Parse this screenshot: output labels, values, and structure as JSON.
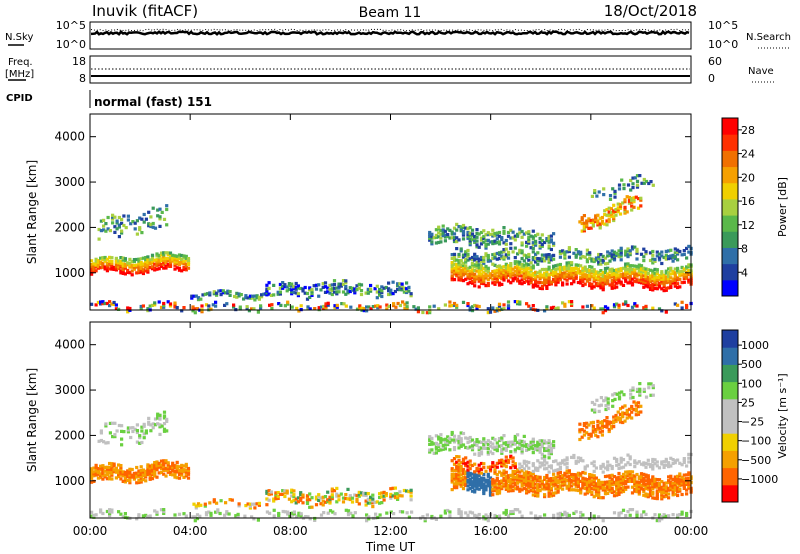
{
  "header": {
    "title": "Inuvik (fitACF)",
    "beam": "Beam 11",
    "date": "18/Oct/2018"
  },
  "noise_panel": {
    "left_label": "N.Sky",
    "right_label": "N.Search",
    "left_ticks": [
      "10^5",
      "10^0"
    ],
    "right_ticks": [
      "10^5",
      "10^0"
    ]
  },
  "freq_panel": {
    "left_label_line1": "Freq.",
    "left_label_line2": "[MHz]",
    "left_ticks": [
      "18",
      "8"
    ],
    "right_label": "Nave",
    "right_ticks": [
      "60",
      "0"
    ]
  },
  "cpid": {
    "label": "CPID",
    "mode": "normal (fast) 151"
  },
  "colors": {
    "power_scale": [
      "#0000ff",
      "#1f3fa0",
      "#2f6fa8",
      "#3a9a5a",
      "#5ab84a",
      "#a8d040",
      "#f0d000",
      "#f5a000",
      "#f07000",
      "#ff3000",
      "#ff0000"
    ],
    "velocity_scale": [
      "#ff0000",
      "#ff6400",
      "#f5a000",
      "#f0d000",
      "#c0c0c0",
      "#c0c0c0",
      "#6ad040",
      "#3a9a5a",
      "#2f6fa8",
      "#1f3fa0"
    ]
  },
  "chart_data": [
    {
      "type": "heatmap",
      "panel": "power",
      "xlabel": "Time UT",
      "ylabel": "Slant Range [km]",
      "x_ticks": [
        "00:00",
        "04:00",
        "08:00",
        "12:00",
        "16:00",
        "20:00",
        "00:00"
      ],
      "y_ticks": [
        1000,
        2000,
        3000,
        4000
      ],
      "ylim": [
        180,
        4500
      ],
      "xlim_hours": [
        0,
        24
      ],
      "colorbar_label": "Power [dB]",
      "colorbar_ticks": [
        4,
        8,
        12,
        16,
        20,
        24,
        28
      ],
      "colorbar_range": [
        0,
        30
      ]
    },
    {
      "type": "heatmap",
      "panel": "velocity",
      "xlabel": "Time UT",
      "ylabel": "Slant Range [km]",
      "x_ticks": [
        "00:00",
        "04:00",
        "08:00",
        "12:00",
        "16:00",
        "20:00",
        "00:00"
      ],
      "y_ticks": [
        1000,
        2000,
        3000,
        4000
      ],
      "ylim": [
        180,
        4500
      ],
      "xlim_hours": [
        0,
        24
      ],
      "colorbar_label": "Velocity [m s⁻¹]",
      "colorbar_ticks": [
        "1000",
        "500",
        "100",
        "25",
        "−25",
        "−100",
        "−500",
        "−1000"
      ]
    }
  ]
}
